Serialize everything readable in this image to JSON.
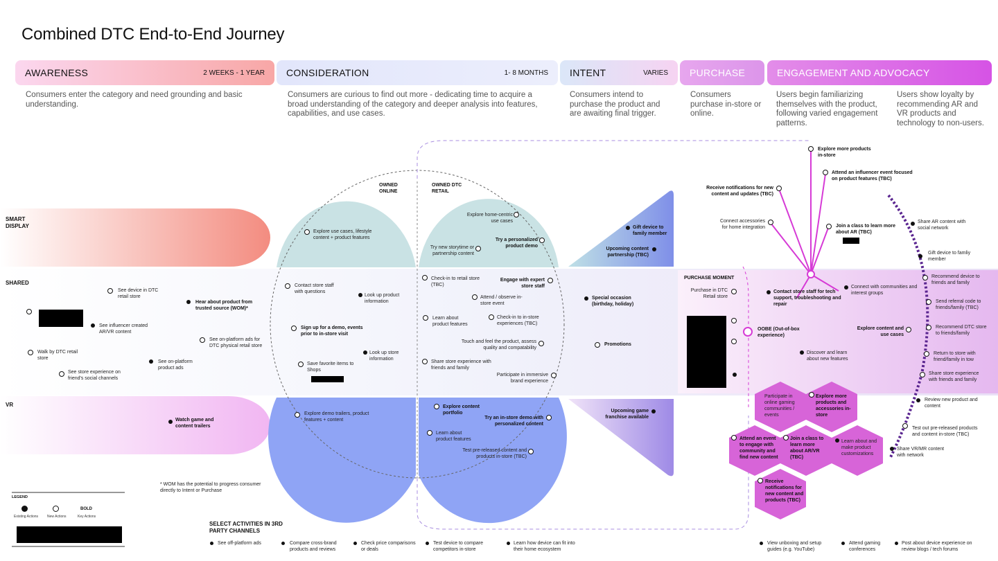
{
  "title": "Combined DTC End-to-End Journey",
  "stages": {
    "awareness": {
      "name": "AWARENESS",
      "duration": "2 WEEKS - 1 YEAR",
      "desc": "Consumers enter the category and need grounding and basic understanding."
    },
    "consideration": {
      "name": "CONSIDERATION",
      "duration": "1- 8 MONTHS",
      "desc": "Consumers are curious to find out more - dedicating time to acquire a broad understanding of the category and deeper analysis into features, capabilities, and use cases."
    },
    "intent": {
      "name": "INTENT",
      "duration": "VARIES",
      "desc": "Consumers intend to purchase the product and are awaiting final trigger."
    },
    "purchase": {
      "name": "PURCHASE",
      "desc": "Consumers purchase in-store or online."
    },
    "engagement": {
      "name": "ENGAGEMENT AND ADVOCACY",
      "desc1": "Users begin familiarizing themselves with the product, following varied engagement patterns.",
      "desc2": "Users show loyalty by recommending AR and VR products and technology to non-users."
    }
  },
  "rows": {
    "smart": "SMART DISPLAY",
    "shared": "SHARED",
    "vr": "VR"
  },
  "channels": {
    "owned_online": "OWNED ONLINE",
    "owned_retail": "OWNED DTC RETAIL",
    "purchase_moment": "PURCHASE MOMENT"
  },
  "activities": {
    "a1": "See device in DTC retail store",
    "a2": "Hear about product from trusted source (WOM)*",
    "a3": "See influencer created AR/VR content",
    "a4": "See on-platform ads for DTC physical retail store",
    "a5": "Walk by DTC retail store",
    "a6": "See on-platform product ads",
    "a7": "See store experience on friend's social channels",
    "a8": "Watch game and content trailers",
    "c1": "Explore use cases, lifestyle content + product features",
    "c2": "Contact store staff with questions",
    "c3": "Look up product information",
    "c4": "Sign up for a demo, events prior to in-store visit",
    "c5": "Look up store information",
    "c6": "Save favorite items to Shops",
    "c7": "Explore demo trailers, product features + content",
    "r1": "Explore home-centric use cases",
    "r2": "Try a personalized product demo",
    "r3": "Try new storytime or partnership content",
    "r4": "Check-in to retail store (TBC)",
    "r5": "Engage with expert store staff",
    "r6": "Attend / observe in-store event",
    "r7": "Learn about product features",
    "r8": "Check-in to in-store experiences (TBC)",
    "r9": "Touch and feel the product, assess quality and compatability",
    "r10": "Share store experience with friends and family",
    "r11": "Participate in immersive brand experience",
    "r12": "Explore content portfolio",
    "r13": "Try an in-store demo with personalized content",
    "r14": "Learn about product features",
    "r15": "Test pre-released content and products in-store (TBC)",
    "i1": "Gift device to family member",
    "i2": "Upcoming content partnership (TBC)",
    "i3": "Special occasion (birthday, holiday)",
    "i4": "Promotions",
    "i5": "Upcoming game franchise available",
    "p1": "Purchase in DTC Retail store",
    "p2": "OOBE (Out-of-box experience)",
    "e1": "Explore more products in-store",
    "e2": "Attend an influencer event focused on product features (TBC)",
    "e3": "Receive notifications for new content and updates (TBC)",
    "e4": "Connect accessories for home integration",
    "e5": "Join a class to learn more about AR (TBC)",
    "e6": "Contact store staff for tech support, troubleshooting and repair",
    "e7": "Connect with communities and interest groups",
    "e8": "Explore content and use cases",
    "e9": "Discover and learn about new features",
    "h1": "Participate in online gaming communities / events",
    "h2": "Explore more products and accessories in-store",
    "h3": "Attend an event to engage with community and find new content",
    "h4": "Join a class to learn more about AR/VR (TBC)",
    "h5": "Learn about and make product customizations",
    "h6": "Receive notifications for new content and products (TBC)",
    "l1": "Share AR content with social network",
    "l2": "Gift device to famliy member",
    "l3": "Recommend device to friends and family",
    "l4": "Send referral code to friends/family (TBC)",
    "l5": "Recommend DTC store to friends/family",
    "l6": "Return to store with friend/family in tow",
    "l7": "Share store experience with friends and family",
    "l8": "Review new product and content",
    "l9": "Test out pre-released products and content in-store (TBC)",
    "l10": "Share VR/MR content with network"
  },
  "footnote": "* WOM has the potential to progress consumer directly to Intent or Purchase",
  "legend": {
    "title": "LEGEND",
    "bold": "BOLD",
    "existing": "Existing Actions",
    "new": "New Actions",
    "key": "Key Actions"
  },
  "third_party": {
    "title": "SELECT ACTIVITIES IN 3RD PARTY CHANNELS",
    "items": [
      "See off-platform ads",
      "Compare cross-brand products and reviews",
      "Check price comparisons or deals",
      "Test device to compare competitors in-store",
      "Learn how device can fit into their home ecosystem"
    ],
    "items_right": [
      "View unboxing and setup guides (e.g. YouTube)",
      "Attend gaming conferences",
      "Post about device experience on review blogs / tech forums"
    ]
  },
  "colors": {
    "magenta": "#d63ad6",
    "accent_purple": "#8a5ae0",
    "teal": "#c9e2e4",
    "blue": "#8fa4f5"
  }
}
